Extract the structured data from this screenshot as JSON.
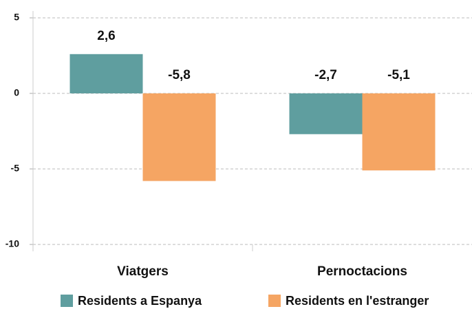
{
  "chart_data": {
    "type": "bar",
    "categories": [
      "Viatgers",
      "Pernoctacions"
    ],
    "series": [
      {
        "name": "Residents a Espanya",
        "color": "#5f9e9f",
        "values": [
          2.6,
          -2.7
        ],
        "value_labels": [
          "2,6",
          "-2,7"
        ]
      },
      {
        "name": "Residents en l'estranger",
        "color": "#f5a563",
        "values": [
          -5.8,
          -5.1
        ],
        "value_labels": [
          "-5,8",
          "-5,1"
        ]
      }
    ],
    "ylim": [
      -10,
      5
    ],
    "yticks": [
      -10,
      -5,
      0,
      5
    ],
    "grid": true,
    "legend": "bottom"
  }
}
